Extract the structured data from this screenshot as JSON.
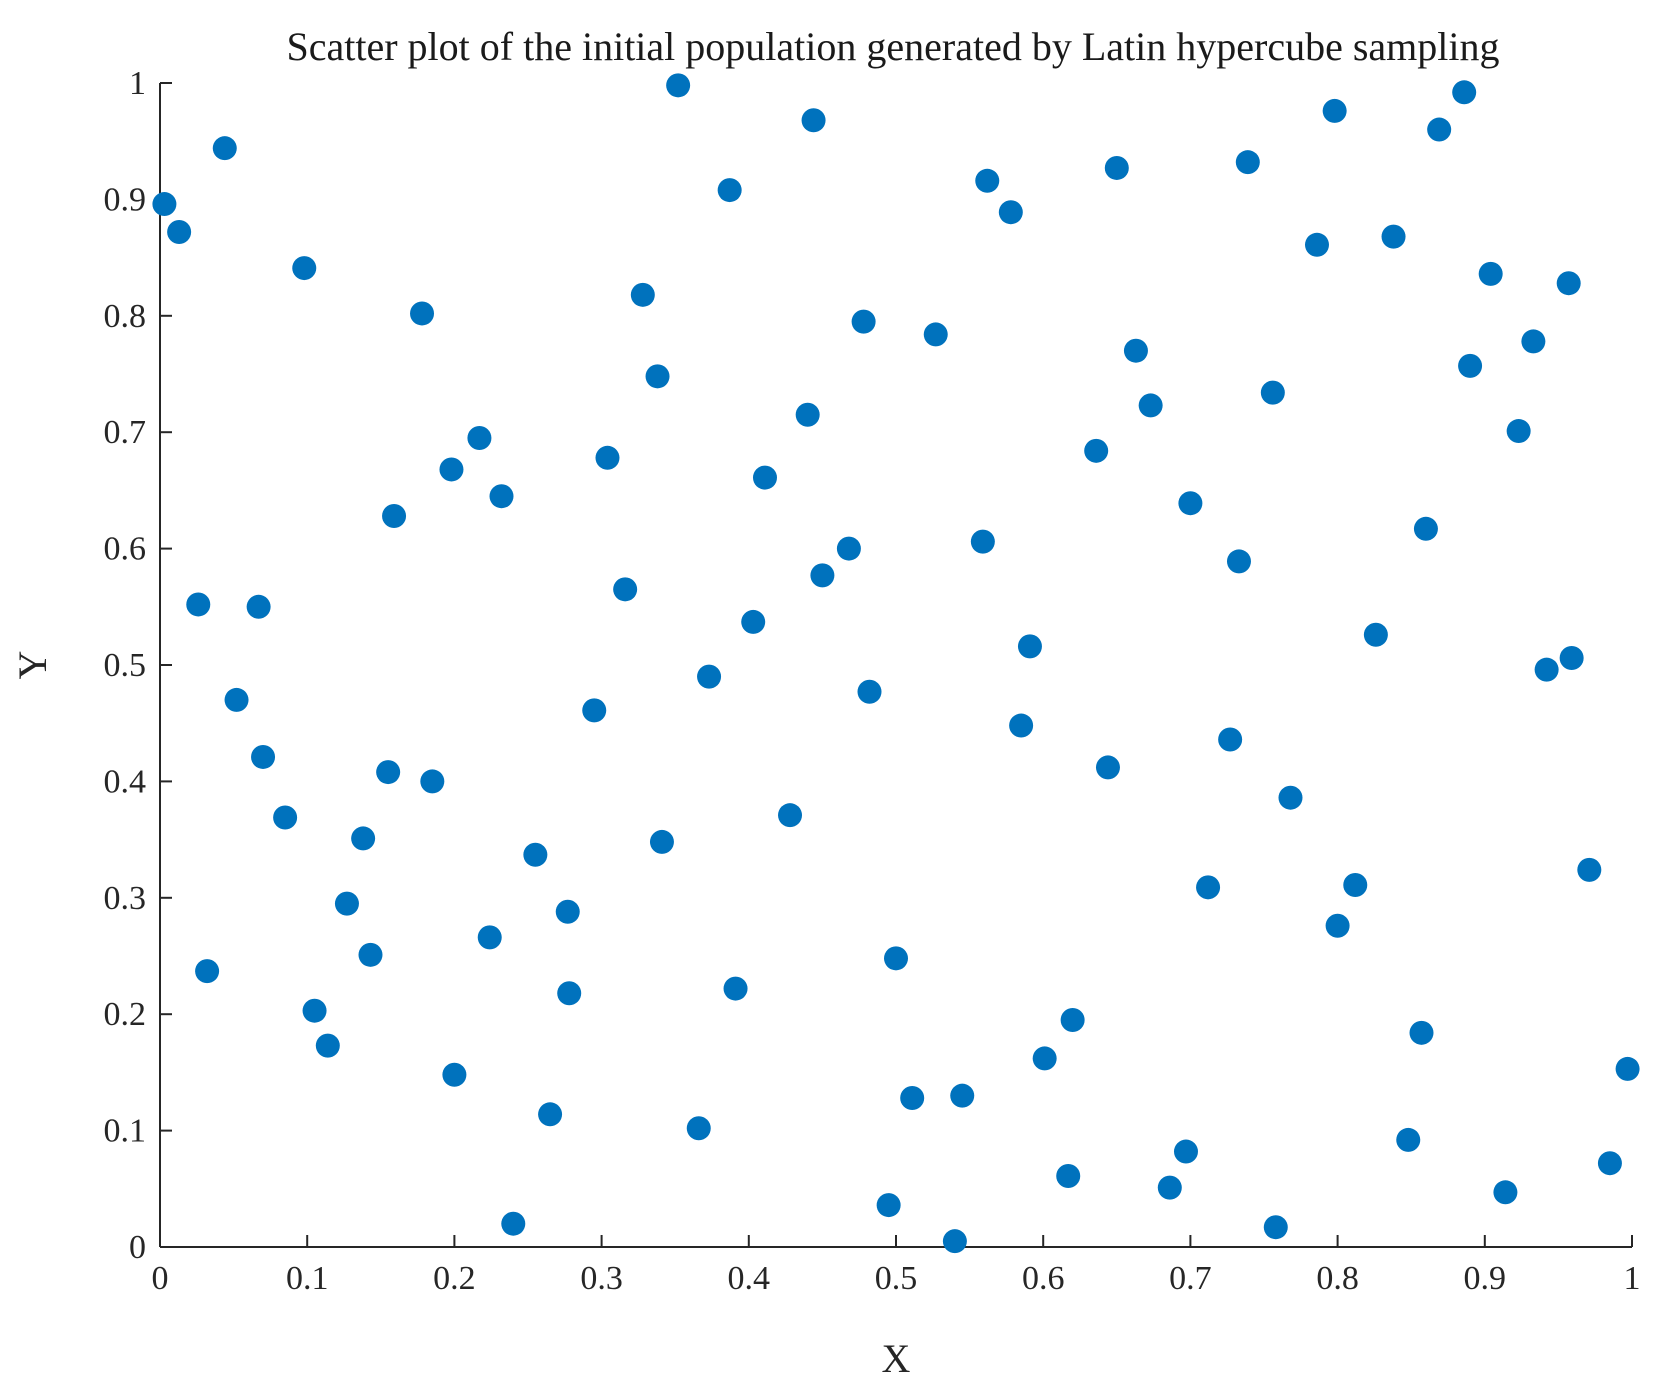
{
  "chart_data": {
    "type": "scatter",
    "title": "Scatter plot of the initial population generated by Latin hypercube sampling",
    "xlabel": "X",
    "ylabel": "Y",
    "xlim": [
      0,
      1
    ],
    "ylim": [
      0,
      1
    ],
    "xticks": [
      "0",
      "0.1",
      "0.2",
      "0.3",
      "0.4",
      "0.5",
      "0.6",
      "0.7",
      "0.8",
      "0.9",
      "1"
    ],
    "yticks": [
      "0",
      "0.1",
      "0.2",
      "0.3",
      "0.4",
      "0.5",
      "0.6",
      "0.7",
      "0.8",
      "0.9",
      "1"
    ],
    "grid": false,
    "legend": false,
    "colors": {
      "marker": "#0072BD",
      "axis": "#262626"
    },
    "series": [
      {
        "points": [
          [
            0.003,
            0.896
          ],
          [
            0.013,
            0.872
          ],
          [
            0.026,
            0.552
          ],
          [
            0.032,
            0.237
          ],
          [
            0.044,
            0.944
          ],
          [
            0.052,
            0.47
          ],
          [
            0.067,
            0.55
          ],
          [
            0.07,
            0.421
          ],
          [
            0.085,
            0.369
          ],
          [
            0.098,
            0.841
          ],
          [
            0.105,
            0.203
          ],
          [
            0.114,
            0.173
          ],
          [
            0.127,
            0.295
          ],
          [
            0.138,
            0.351
          ],
          [
            0.143,
            0.251
          ],
          [
            0.155,
            0.408
          ],
          [
            0.159,
            0.628
          ],
          [
            0.178,
            0.802
          ],
          [
            0.185,
            0.4
          ],
          [
            0.198,
            0.668
          ],
          [
            0.2,
            0.148
          ],
          [
            0.217,
            0.695
          ],
          [
            0.224,
            0.266
          ],
          [
            0.232,
            0.645
          ],
          [
            0.24,
            0.02
          ],
          [
            0.255,
            0.337
          ],
          [
            0.265,
            0.114
          ],
          [
            0.277,
            0.288
          ],
          [
            0.278,
            0.218
          ],
          [
            0.295,
            0.461
          ],
          [
            0.304,
            0.678
          ],
          [
            0.316,
            0.565
          ],
          [
            0.328,
            0.818
          ],
          [
            0.338,
            0.748
          ],
          [
            0.341,
            0.348
          ],
          [
            0.352,
            0.998
          ],
          [
            0.366,
            0.102
          ],
          [
            0.373,
            0.49
          ],
          [
            0.387,
            0.908
          ],
          [
            0.391,
            0.222
          ],
          [
            0.403,
            0.537
          ],
          [
            0.411,
            0.661
          ],
          [
            0.428,
            0.371
          ],
          [
            0.44,
            0.715
          ],
          [
            0.444,
            0.968
          ],
          [
            0.45,
            0.577
          ],
          [
            0.468,
            0.6
          ],
          [
            0.478,
            0.795
          ],
          [
            0.482,
            0.477
          ],
          [
            0.495,
            0.036
          ],
          [
            0.5,
            0.248
          ],
          [
            0.511,
            0.128
          ],
          [
            0.527,
            0.784
          ],
          [
            0.54,
            0.005
          ],
          [
            0.545,
            0.13
          ],
          [
            0.559,
            0.606
          ],
          [
            0.562,
            0.916
          ],
          [
            0.578,
            0.889
          ],
          [
            0.585,
            0.448
          ],
          [
            0.591,
            0.516
          ],
          [
            0.601,
            0.162
          ],
          [
            0.617,
            0.061
          ],
          [
            0.62,
            0.195
          ],
          [
            0.636,
            0.684
          ],
          [
            0.644,
            0.412
          ],
          [
            0.65,
            0.927
          ],
          [
            0.663,
            0.77
          ],
          [
            0.673,
            0.723
          ],
          [
            0.686,
            0.051
          ],
          [
            0.697,
            0.082
          ],
          [
            0.7,
            0.639
          ],
          [
            0.712,
            0.309
          ],
          [
            0.727,
            0.436
          ],
          [
            0.733,
            0.589
          ],
          [
            0.739,
            0.932
          ],
          [
            0.756,
            0.734
          ],
          [
            0.758,
            0.017
          ],
          [
            0.768,
            0.386
          ],
          [
            0.786,
            0.861
          ],
          [
            0.798,
            0.976
          ],
          [
            0.8,
            0.276
          ],
          [
            0.812,
            0.311
          ],
          [
            0.826,
            0.526
          ],
          [
            0.838,
            0.868
          ],
          [
            0.848,
            0.092
          ],
          [
            0.857,
            0.184
          ],
          [
            0.86,
            0.617
          ],
          [
            0.869,
            0.96
          ],
          [
            0.886,
            0.992
          ],
          [
            0.89,
            0.757
          ],
          [
            0.904,
            0.836
          ],
          [
            0.914,
            0.047
          ],
          [
            0.923,
            0.701
          ],
          [
            0.933,
            0.778
          ],
          [
            0.942,
            0.496
          ],
          [
            0.957,
            0.828
          ],
          [
            0.959,
            0.506
          ],
          [
            0.971,
            0.324
          ],
          [
            0.985,
            0.072
          ],
          [
            0.997,
            0.153
          ]
        ]
      }
    ]
  }
}
